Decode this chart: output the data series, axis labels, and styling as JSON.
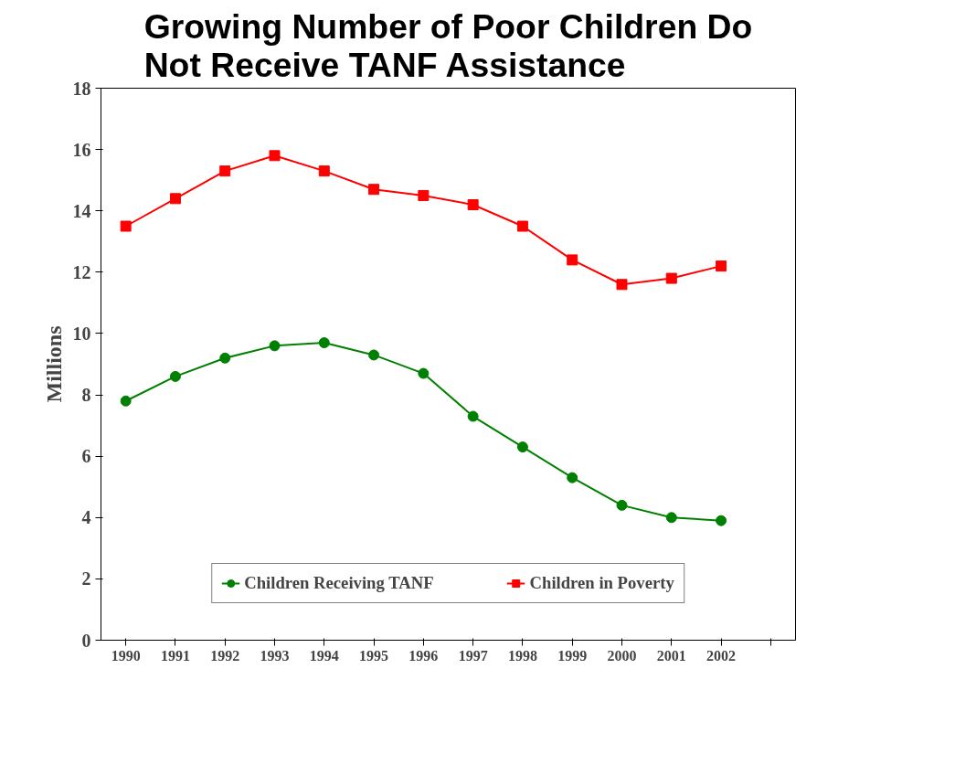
{
  "chart_data": {
    "type": "line",
    "title": "Growing Number of Poor Children Do Not Receive TANF Assistance",
    "ylabel": "Millions",
    "categories": [
      "1990",
      "1991",
      "1992",
      "1993",
      "1994",
      "1995",
      "1996",
      "1997",
      "1998",
      "1999",
      "2000",
      "2001",
      "2002",
      null
    ],
    "series": [
      {
        "name": "Children Receiving TANF",
        "color": "#008000",
        "marker": "circle",
        "values": [
          7.8,
          8.6,
          9.2,
          9.6,
          9.7,
          9.3,
          8.7,
          7.3,
          6.3,
          5.3,
          4.4,
          4.0,
          3.9,
          null
        ]
      },
      {
        "name": "Children in Poverty",
        "color": "#ff0000",
        "marker": "square",
        "values": [
          13.5,
          14.4,
          15.3,
          15.8,
          15.3,
          14.7,
          14.5,
          14.2,
          13.5,
          12.4,
          11.6,
          11.8,
          12.2,
          null
        ]
      }
    ],
    "ylim": [
      0,
      18
    ],
    "yticks": [
      0,
      2,
      4,
      6,
      8,
      10,
      12,
      14,
      16,
      18
    ],
    "grid": false,
    "legend": "bottom"
  }
}
